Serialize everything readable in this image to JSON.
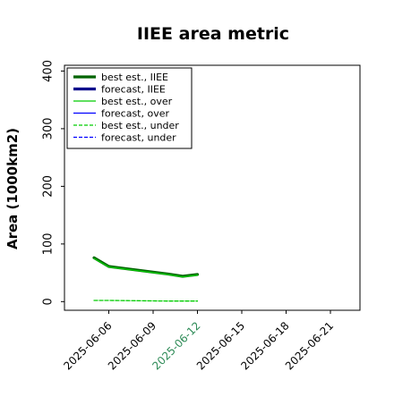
{
  "chart_data": {
    "type": "line",
    "title": "IIEE area metric",
    "xlabel": "",
    "ylabel": "Area (1000km2)",
    "x_ticks": [
      "2025-06-06",
      "2025-06-09",
      "2025-06-12",
      "2025-06-15",
      "2025-06-18",
      "2025-06-21"
    ],
    "x_tick_colors": [
      "#000000",
      "#000000",
      "#2e8b57",
      "#000000",
      "#000000",
      "#000000"
    ],
    "xlim": [
      "2025-06-03",
      "2025-06-23"
    ],
    "y_ticks": [
      0,
      100,
      200,
      300,
      400
    ],
    "ylim": [
      -15,
      410
    ],
    "grid": false,
    "legend_position": "top-left",
    "series": [
      {
        "name": "best est., IIEE",
        "color": "#006400",
        "style": "solid",
        "width": "thick",
        "points": [
          [
            "2025-06-05",
            76
          ],
          [
            "2025-06-06",
            61
          ],
          [
            "2025-06-10",
            48
          ],
          [
            "2025-06-11",
            44
          ],
          [
            "2025-06-12",
            47
          ]
        ]
      },
      {
        "name": "forecast, IIEE",
        "color": "#00008b",
        "style": "solid",
        "width": "thick",
        "points": []
      },
      {
        "name": "best est., over",
        "color": "#00cc00",
        "style": "solid",
        "width": "thin",
        "points": [
          [
            "2025-06-05",
            75
          ],
          [
            "2025-06-06",
            60
          ],
          [
            "2025-06-10",
            47
          ],
          [
            "2025-06-11",
            43
          ],
          [
            "2025-06-12",
            46
          ]
        ]
      },
      {
        "name": "forecast, over",
        "color": "#0000ff",
        "style": "solid",
        "width": "thin",
        "points": []
      },
      {
        "name": "best est., under",
        "color": "#00cc00",
        "style": "dashed",
        "width": "thin",
        "points": [
          [
            "2025-06-05",
            2
          ],
          [
            "2025-06-06",
            2
          ],
          [
            "2025-06-10",
            1
          ],
          [
            "2025-06-11",
            1
          ],
          [
            "2025-06-12",
            1
          ]
        ]
      },
      {
        "name": "forecast, under",
        "color": "#0000ff",
        "style": "dashed",
        "width": "thin",
        "points": []
      }
    ]
  }
}
